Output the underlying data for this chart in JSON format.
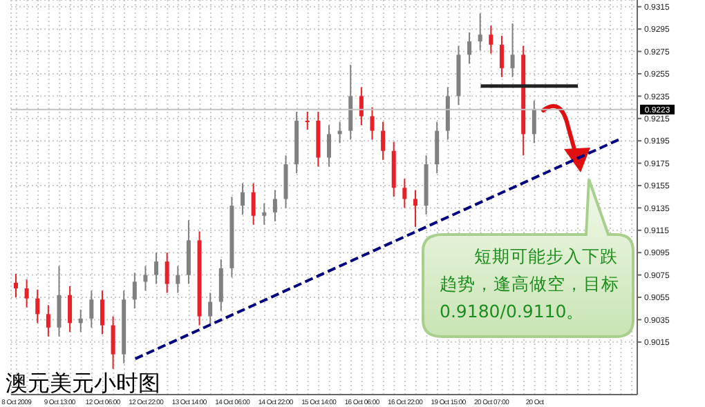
{
  "chart_data": {
    "type": "candlestick",
    "title": "澳元美元小时图",
    "categories": [
      "8 Oct 2009",
      null,
      null,
      null,
      "9 Oct 13:00",
      null,
      null,
      null,
      "12 Oct 06:00",
      null,
      null,
      null,
      "12 Oct 22:00",
      null,
      null,
      null,
      "13 Oct 14:00",
      null,
      null,
      null,
      "14 Oct 06:00",
      null,
      null,
      null,
      "14 Oct 22:00",
      null,
      null,
      null,
      "15 Oct 14:00",
      null,
      null,
      null,
      "16 Oct 06:00",
      null,
      null,
      null,
      "16 Oct 22:00",
      null,
      null,
      null,
      "19 Oct 15:00",
      null,
      null,
      null,
      "20 Oct 07:00",
      null,
      null,
      null,
      "20 Oct",
      null,
      null,
      null,
      null,
      null,
      null,
      null,
      null,
      null
    ],
    "ohlc": [
      [
        0.9068,
        0.9076,
        0.9055,
        0.9063
      ],
      [
        0.9063,
        0.9071,
        0.9046,
        0.9054
      ],
      [
        0.9054,
        0.9062,
        0.9032,
        0.904
      ],
      [
        0.904,
        0.9048,
        0.902,
        0.9028
      ],
      [
        0.9028,
        0.9083,
        0.902,
        0.9057
      ],
      [
        0.9057,
        0.9065,
        0.9024,
        0.9032
      ],
      [
        0.9032,
        0.9044,
        0.9024,
        0.9036
      ],
      [
        0.9036,
        0.9061,
        0.9028,
        0.9053
      ],
      [
        0.9053,
        0.9061,
        0.9022,
        0.903
      ],
      [
        0.903,
        0.9038,
        0.8991,
        0.9004
      ],
      [
        0.9004,
        0.9061,
        0.8996,
        0.9053
      ],
      [
        0.9053,
        0.9077,
        0.9045,
        0.9069
      ],
      [
        0.9069,
        0.9083,
        0.9061,
        0.9075
      ],
      [
        0.9075,
        0.9095,
        0.9067,
        0.9087
      ],
      [
        0.9087,
        0.9095,
        0.9059,
        0.9067
      ],
      [
        0.9067,
        0.9083,
        0.9059,
        0.9075
      ],
      [
        0.9075,
        0.9124,
        0.9067,
        0.9106
      ],
      [
        0.9106,
        0.9114,
        0.903,
        0.9038
      ],
      [
        0.9038,
        0.9059,
        0.903,
        0.9051
      ],
      [
        0.9051,
        0.9089,
        0.9043,
        0.9081
      ],
      [
        0.9081,
        0.9145,
        0.9073,
        0.9137
      ],
      [
        0.9137,
        0.9157,
        0.9129,
        0.9149
      ],
      [
        0.9149,
        0.9157,
        0.912,
        0.9128
      ],
      [
        0.9128,
        0.9139,
        0.912,
        0.9131
      ],
      [
        0.9131,
        0.9151,
        0.9123,
        0.9143
      ],
      [
        0.9143,
        0.9182,
        0.9135,
        0.9174
      ],
      [
        0.9174,
        0.9221,
        0.9166,
        0.9213
      ],
      [
        0.9213,
        0.9221,
        0.9205,
        0.9213
      ],
      [
        0.9213,
        0.9221,
        0.9172,
        0.918
      ],
      [
        0.918,
        0.9209,
        0.9172,
        0.9201
      ],
      [
        0.9201,
        0.9212,
        0.9193,
        0.9204
      ],
      [
        0.9204,
        0.9263,
        0.9196,
        0.9235
      ],
      [
        0.9235,
        0.9243,
        0.9209,
        0.9217
      ],
      [
        0.9217,
        0.9225,
        0.9196,
        0.9204
      ],
      [
        0.9204,
        0.9212,
        0.9178,
        0.9186
      ],
      [
        0.9186,
        0.9194,
        0.9145,
        0.9153
      ],
      [
        0.9153,
        0.9161,
        0.9135,
        0.9143
      ],
      [
        0.9143,
        0.9151,
        0.9118,
        0.9137
      ],
      [
        0.9137,
        0.9182,
        0.9129,
        0.9174
      ],
      [
        0.9174,
        0.9212,
        0.9166,
        0.9204
      ],
      [
        0.9204,
        0.9243,
        0.9196,
        0.9235
      ],
      [
        0.9235,
        0.928,
        0.9227,
        0.9272
      ],
      [
        0.9272,
        0.9292,
        0.9264,
        0.9284
      ],
      [
        0.9284,
        0.9309,
        0.9276,
        0.929
      ],
      [
        0.929,
        0.9298,
        0.9273,
        0.9281
      ],
      [
        0.9281,
        0.9289,
        0.9252,
        0.926
      ],
      [
        0.926,
        0.93,
        0.9252,
        0.9272
      ],
      [
        0.9272,
        0.928,
        0.9182,
        0.9201
      ],
      [
        0.9201,
        0.9231,
        0.9193,
        0.9223
      ],
      null,
      null,
      null,
      null,
      null,
      null,
      null,
      null,
      null
    ],
    "colors": [
      "#e8202a",
      "#e8202a",
      "#e8202a",
      "#e8202a",
      "#808080",
      "#e8202a",
      "#808080",
      "#808080",
      "#e8202a",
      "#e8202a",
      "#808080",
      "#808080",
      "#808080",
      "#808080",
      "#e8202a",
      "#808080",
      "#808080",
      "#e8202a",
      "#808080",
      "#808080",
      "#808080",
      "#808080",
      "#e8202a",
      "#808080",
      "#808080",
      "#808080",
      "#808080",
      "#e8202a",
      "#e8202a",
      "#808080",
      "#808080",
      "#808080",
      "#e8202a",
      "#e8202a",
      "#e8202a",
      "#e8202a",
      "#e8202a",
      "#e8202a",
      "#808080",
      "#808080",
      "#808080",
      "#808080",
      "#808080",
      "#808080",
      "#e8202a",
      "#e8202a",
      "#808080",
      "#e8202a",
      "#808080",
      null,
      null,
      null,
      null,
      null,
      null,
      null,
      null,
      null
    ],
    "series": [
      {
        "type": "line",
        "values": [
          null,
          null,
          null,
          null,
          null,
          null,
          null,
          null,
          null,
          null,
          null,
          0.9,
          null,
          null,
          null,
          null,
          null,
          null,
          null,
          null,
          null,
          null,
          null,
          null,
          null,
          null,
          null,
          null,
          null,
          null,
          null,
          null,
          null,
          null,
          null,
          null,
          null,
          null,
          null,
          null,
          null,
          null,
          null,
          null,
          null,
          null,
          null,
          null,
          null,
          null,
          null,
          null,
          null,
          null,
          null,
          null,
          0.9197,
          null
        ],
        "color": "#000080",
        "line_style": "dashed"
      },
      {
        "type": "line",
        "values": [
          null,
          null,
          null,
          null,
          null,
          null,
          null,
          null,
          null,
          null,
          null,
          null,
          null,
          null,
          null,
          null,
          null,
          null,
          null,
          null,
          null,
          null,
          null,
          null,
          null,
          null,
          null,
          null,
          null,
          null,
          null,
          null,
          null,
          null,
          null,
          null,
          null,
          null,
          null,
          null,
          null,
          null,
          null,
          0.9244,
          null,
          null,
          null,
          null,
          null,
          null,
          null,
          null,
          0.9244,
          null,
          null,
          null,
          null,
          null
        ],
        "color": "#222222",
        "line_style": "solid"
      }
    ],
    "ref_lines": [
      {
        "axis": "y",
        "value": 0.9223,
        "label": "0.9223",
        "color": "#c0c0c0"
      }
    ],
    "ylim": [
      0.8968,
      0.9321
    ],
    "yticks": [
      0.9015,
      0.9035,
      0.9055,
      0.9075,
      0.9095,
      0.9115,
      0.9135,
      0.9155,
      0.9175,
      0.9195,
      0.9215,
      0.9235,
      0.9255,
      0.9275,
      0.9295,
      0.9315
    ],
    "grid": true,
    "legend": false,
    "annotations": [
      "短期可能步入下跌趋势，逢高做空，目标0.9180/0.9110。"
    ]
  }
}
